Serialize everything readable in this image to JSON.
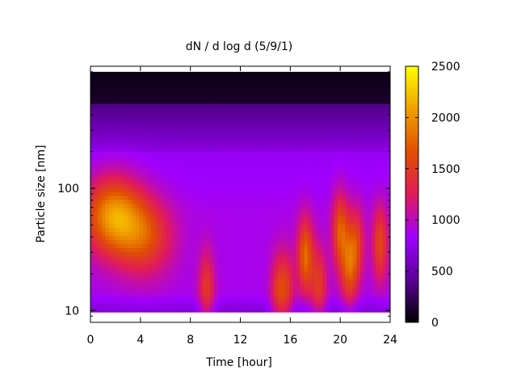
{
  "chart_data": {
    "type": "heatmap",
    "title": "dN / d log d (5/9/1)",
    "xlabel": "Time [hour]",
    "ylabel": "Particle size [nm]",
    "xlim": [
      0,
      24
    ],
    "x_ticks": [
      0,
      4,
      8,
      12,
      16,
      20,
      24
    ],
    "y_scale": "log",
    "ylim": [
      8,
      1000
    ],
    "y_tick_labels": [
      "10",
      "100"
    ],
    "y_ticks": [
      10,
      100
    ],
    "colorbar": {
      "range": [
        0,
        2500
      ],
      "ticks": [
        0,
        500,
        1000,
        1500,
        2000,
        2500
      ],
      "colormap": [
        "#000000",
        "#5a0096",
        "#a000ff",
        "#e01a5a",
        "#e05000",
        "#f0a000",
        "#ffff00"
      ]
    },
    "grid": false,
    "intensity_features": [
      {
        "time_hour": 1.8,
        "size_nm": 60,
        "value": 1900
      },
      {
        "time_hour": 4.3,
        "size_nm": 40,
        "value": 1500
      },
      {
        "time_hour": 9.3,
        "size_nm": 15,
        "value": 1400
      },
      {
        "time_hour": 15.0,
        "size_nm": 14,
        "value": 1300
      },
      {
        "time_hour": 15.7,
        "size_nm": 15,
        "value": 1300
      },
      {
        "time_hour": 17.2,
        "size_nm": 28,
        "value": 1700
      },
      {
        "time_hour": 18.3,
        "size_nm": 16,
        "value": 1400
      },
      {
        "time_hour": 20.0,
        "size_nm": 45,
        "value": 1600
      },
      {
        "time_hour": 20.7,
        "size_nm": 22,
        "value": 1500
      },
      {
        "time_hour": 21.3,
        "size_nm": 35,
        "value": 1400
      },
      {
        "time_hour": 23.2,
        "size_nm": 35,
        "value": 1500
      }
    ]
  }
}
